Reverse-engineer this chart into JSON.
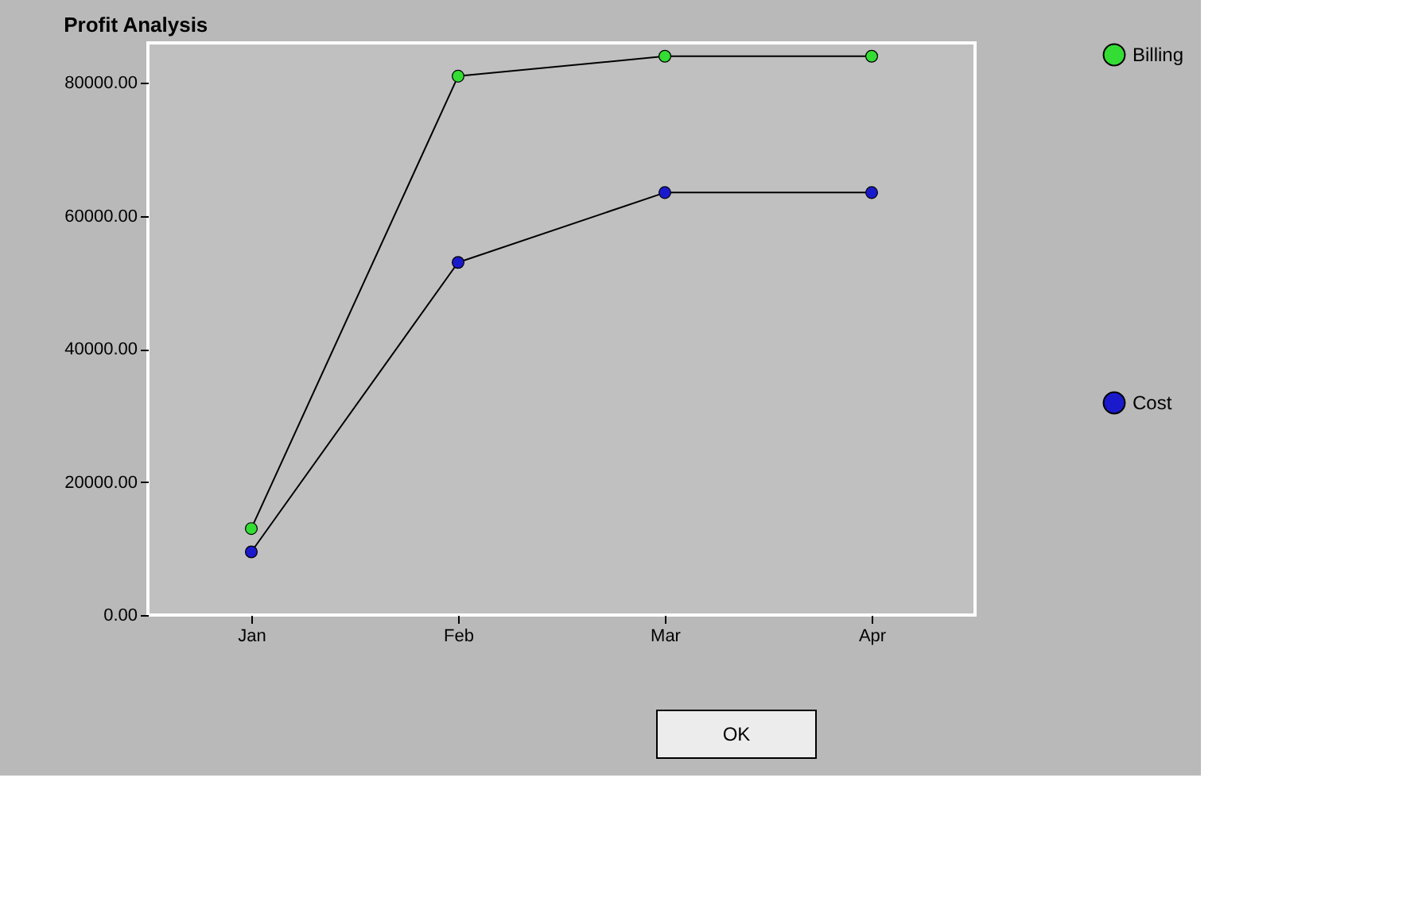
{
  "chart_data": {
    "type": "line",
    "title": "Profit Analysis",
    "categories": [
      "Jan",
      "Feb",
      "Mar",
      "Apr"
    ],
    "series": [
      {
        "name": "Billing",
        "color": "#33dd33",
        "values": [
          13000,
          81000,
          84000,
          84000
        ]
      },
      {
        "name": "Cost",
        "color": "#1a1acc",
        "values": [
          9500,
          53000,
          63500,
          63500
        ]
      }
    ],
    "ylim": [
      0,
      86000
    ],
    "yticks": [
      {
        "value": 0,
        "label": "0.00"
      },
      {
        "value": 20000,
        "label": "20000.00"
      },
      {
        "value": 40000,
        "label": "40000.00"
      },
      {
        "value": 60000,
        "label": "60000.00"
      },
      {
        "value": 80000,
        "label": "80000.00"
      }
    ],
    "grid": false,
    "legend": "right",
    "marker": "circle",
    "line_style": "solid",
    "annotations": [
      "OK"
    ]
  }
}
